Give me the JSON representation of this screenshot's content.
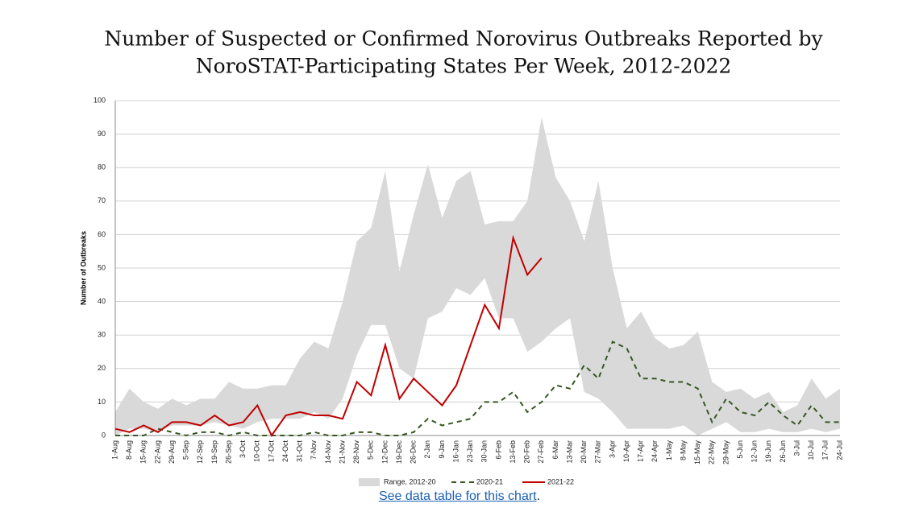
{
  "chart_data": {
    "type": "line",
    "title": [
      "Number of Suspected or Confirmed Norovirus Outbreaks Reported by",
      "NoroSTAT-Participating States Per Week, 2012-2022"
    ],
    "y_label": "Number of Outbreaks",
    "categories": [
      "1-Aug",
      "8-Aug",
      "15-Aug",
      "22-Aug",
      "29-Aug",
      "5-Sep",
      "12-Sep",
      "19-Sep",
      "26-Sep",
      "3-Oct",
      "10-Oct",
      "17-Oct",
      "24-Oct",
      "31-Oct",
      "7-Nov",
      "14-Nov",
      "21-Nov",
      "28-Nov",
      "5-Dec",
      "12-Dec",
      "19-Dec",
      "26-Dec",
      "2-Jan",
      "9-Jan",
      "16-Jan",
      "23-Jan",
      "30-Jan",
      "6-Feb",
      "13-Feb",
      "20-Feb",
      "27-Feb",
      "6-Mar",
      "13-Mar",
      "20-Mar",
      "27-Mar",
      "3-Apr",
      "10-Apr",
      "17-Apr",
      "24-Apr",
      "1-May",
      "8-May",
      "15-May",
      "22-May",
      "29-May",
      "5-Jun",
      "12-Jun",
      "19-Jun",
      "26-Jun",
      "3-Jul",
      "10-Jul",
      "17-Jul",
      "24-Jul"
    ],
    "range": {
      "name": "Range, 2012-20",
      "color": "#d9d9d9",
      "upper": [
        7,
        14,
        10,
        8,
        11,
        9,
        11,
        11,
        16,
        14,
        14,
        15,
        15,
        23,
        28,
        26,
        40,
        58,
        62,
        79,
        49,
        66,
        81,
        65,
        76,
        79,
        63,
        64,
        64,
        70,
        95,
        77,
        70,
        58,
        76,
        50,
        32,
        37,
        29,
        26,
        27,
        31,
        16,
        13,
        14,
        11,
        13,
        7,
        9,
        17,
        11,
        14
      ],
      "lower": [
        0,
        2,
        2,
        1,
        3,
        3,
        3,
        4,
        3,
        2,
        4,
        5,
        5,
        5,
        7,
        5,
        11,
        24,
        33,
        33,
        20,
        17,
        35,
        37,
        44,
        42,
        47,
        35,
        35,
        25,
        28,
        32,
        35,
        13,
        11,
        7,
        2,
        2,
        2,
        2,
        3,
        0,
        2,
        4,
        1,
        1,
        2,
        1,
        1,
        2,
        1,
        2
      ]
    },
    "series": [
      {
        "name": "2020-21",
        "color": "#375623",
        "dashed": true,
        "values": [
          0,
          0,
          0,
          2,
          1,
          0,
          1,
          1,
          0,
          1,
          0,
          0,
          0,
          0,
          1,
          0,
          0,
          1,
          1,
          0,
          0,
          1,
          5,
          3,
          4,
          5,
          10,
          10,
          13,
          7,
          10,
          15,
          14,
          21,
          17,
          28,
          26,
          17,
          17,
          16,
          16,
          14,
          4,
          11,
          7,
          6,
          10,
          6,
          3,
          9,
          4,
          4
        ]
      },
      {
        "name": "2021-22",
        "color": "#c00000",
        "dashed": false,
        "values": [
          2,
          1,
          3,
          1,
          4,
          4,
          3,
          6,
          3,
          4,
          9,
          0,
          6,
          7,
          6,
          6,
          5,
          16,
          12,
          27,
          11,
          17,
          13,
          9,
          15,
          27,
          39,
          32,
          59,
          48,
          53,
          null,
          null,
          null,
          null,
          null,
          null,
          null,
          null,
          null,
          null,
          null,
          null,
          null,
          null,
          null,
          null,
          null,
          null,
          null,
          null,
          null
        ]
      }
    ],
    "ylim": [
      0,
      100
    ],
    "yticks": [
      0,
      10,
      20,
      30,
      40,
      50,
      60,
      70,
      80,
      90,
      100
    ],
    "grid": true
  },
  "link_text": "See data table for this chart",
  "link_suffix": "."
}
